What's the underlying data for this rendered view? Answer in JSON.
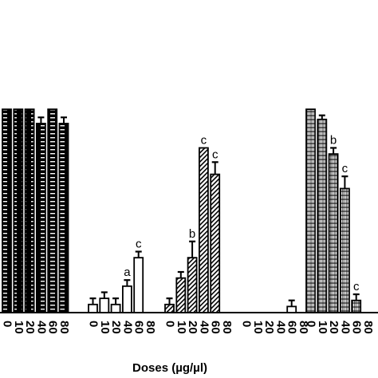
{
  "chart_data": {
    "type": "bar",
    "title": "",
    "xlabel": "Doses (µg/µl)",
    "ylabel": "",
    "ylim": [
      0,
      100
    ],
    "grid": false,
    "legend": "none",
    "groups": [
      {
        "pattern": "solid-ladder",
        "color": "#000000",
        "categories": [
          "0",
          "10",
          "20",
          "40",
          "60",
          "80"
        ],
        "values": [
          100,
          100,
          100,
          93,
          100,
          93
        ],
        "errors": [
          0,
          0,
          0,
          3,
          0,
          3
        ],
        "labels": [
          "",
          "",
          "",
          "",
          "",
          ""
        ]
      },
      {
        "pattern": "outline",
        "color": "#000000",
        "categories": [
          "0",
          "10",
          "20",
          "40",
          "60",
          "80"
        ],
        "values": [
          4,
          7,
          4,
          13,
          27,
          0
        ],
        "errors": [
          3,
          3,
          3,
          3,
          3,
          0
        ],
        "labels": [
          "",
          "",
          "",
          "a",
          "c",
          ""
        ]
      },
      {
        "pattern": "diagonal-hatch",
        "color": "#000000",
        "categories": [
          "0",
          "10",
          "20",
          "40",
          "60",
          "80"
        ],
        "values": [
          4,
          17,
          27,
          81,
          68,
          0
        ],
        "errors": [
          3,
          3,
          8,
          0,
          6,
          0
        ],
        "labels": [
          "",
          "",
          "b",
          "c",
          "c",
          ""
        ]
      },
      {
        "pattern": "outline",
        "color": "#000000",
        "categories": [
          "0",
          "10",
          "20",
          "40",
          "60",
          "80"
        ],
        "values": [
          0,
          0,
          0,
          0,
          3,
          0
        ],
        "errors": [
          0,
          0,
          0,
          0,
          3,
          0
        ],
        "labels": [
          "",
          "",
          "",
          "",
          "",
          ""
        ]
      },
      {
        "pattern": "grid-plus",
        "color": "#000000",
        "categories": [
          "0",
          "10",
          "20",
          "40",
          "60",
          "80"
        ],
        "values": [
          100,
          95,
          78,
          61,
          6,
          0
        ],
        "errors": [
          0,
          2,
          3,
          6,
          3,
          0
        ],
        "labels": [
          "",
          "",
          "b",
          "c",
          "c",
          ""
        ]
      }
    ]
  }
}
